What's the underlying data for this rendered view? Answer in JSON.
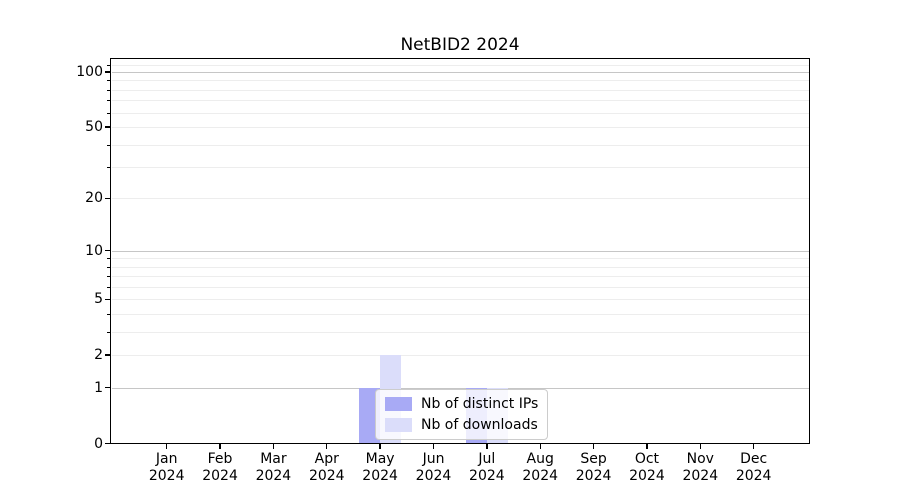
{
  "title": "NetBID2 2024",
  "colors": {
    "bar_distinct_ips": "#a8aaf5",
    "bar_downloads": "#dbddfa",
    "grid_major": "#c6c6c6",
    "grid_minor": "#ededed",
    "axis_line": "#000000",
    "legend_border": "#cccccc",
    "text": "#000000"
  },
  "legend": {
    "items": [
      {
        "label": "Nb of distinct IPs",
        "color_key": "bar_distinct_ips"
      },
      {
        "label": "Nb of downloads",
        "color_key": "bar_downloads"
      }
    ]
  },
  "chart_data": {
    "type": "bar",
    "title": "NetBID2 2024",
    "categories": [
      "Jan",
      "Feb",
      "Mar",
      "Apr",
      "May",
      "Jun",
      "Jul",
      "Aug",
      "Sep",
      "Oct",
      "Nov",
      "Dec"
    ],
    "category_year": "2024",
    "series": [
      {
        "name": "Nb of distinct IPs",
        "color": "#a8aaf5",
        "values": [
          0,
          0,
          0,
          0,
          1,
          0,
          1,
          0,
          0,
          0,
          0,
          0
        ]
      },
      {
        "name": "Nb of downloads",
        "color": "#dbddfa",
        "values": [
          0,
          0,
          0,
          0,
          2,
          0,
          1,
          0,
          0,
          0,
          0,
          0
        ]
      }
    ],
    "xlabel": "",
    "ylabel": "",
    "y_axis": {
      "scale": "log1p",
      "tick_values": [
        0,
        1,
        2,
        5,
        10,
        20,
        50,
        100
      ],
      "major_gridlines": [
        1,
        10,
        100
      ],
      "minor_gridlines": [
        2,
        3,
        4,
        5,
        6,
        7,
        8,
        9,
        20,
        30,
        40,
        50,
        60,
        70,
        80,
        90,
        110
      ],
      "range": [
        0,
        120
      ]
    },
    "grid": true,
    "legend_position": "inside-lower-center"
  }
}
